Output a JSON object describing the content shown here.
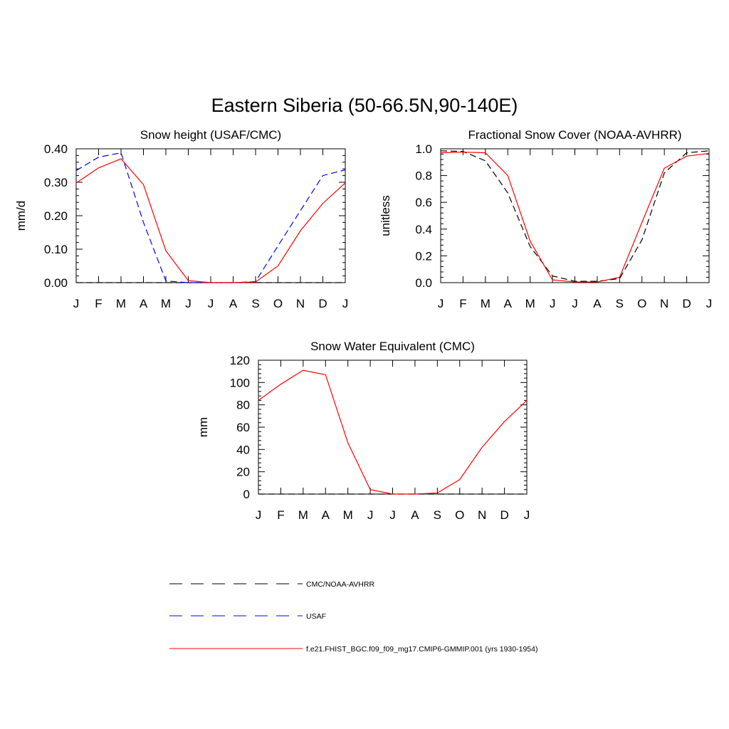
{
  "figure": {
    "title": "Eastern Siberia (50-66.5N,90-140E)"
  },
  "months": [
    "J",
    "F",
    "M",
    "A",
    "M",
    "J",
    "J",
    "A",
    "S",
    "O",
    "N",
    "D",
    "J"
  ],
  "colors": {
    "obs": "#000000",
    "usaf": "#0000ff",
    "model": "#ff0000"
  },
  "chart_data": [
    {
      "type": "line",
      "title": "Snow height (USAF/CMC)",
      "ylabel": "mm/d",
      "ylim": [
        0,
        0.4
      ],
      "yticks": [
        "0.00",
        "0.10",
        "0.20",
        "0.30",
        "0.40"
      ],
      "x": [
        "J",
        "F",
        "M",
        "A",
        "M",
        "J",
        "J",
        "A",
        "S",
        "O",
        "N",
        "D",
        "J"
      ],
      "series": [
        {
          "name": "CMC/NOAA-AVHRR",
          "values": [
            0,
            0,
            0,
            0,
            0,
            0,
            0,
            0,
            0,
            0,
            0,
            0,
            0
          ]
        },
        {
          "name": "USAF",
          "values": [
            0.335,
            0.375,
            0.388,
            0.18,
            0.005,
            0,
            0,
            0,
            0.003,
            0.11,
            0.215,
            0.32,
            0.337
          ]
        },
        {
          "name": "f.e21.FHIST_BGC.f09_f09_mg17.CMIP6-GMMIP.001 (yrs 1930-1954)",
          "values": [
            0.298,
            0.343,
            0.37,
            0.293,
            0.095,
            0.006,
            0,
            0,
            0.002,
            0.05,
            0.155,
            0.237,
            0.298
          ]
        }
      ]
    },
    {
      "type": "line",
      "title": "Fractional Snow Cover (NOAA-AVHRR)",
      "ylabel": "unitless",
      "ylim": [
        0,
        1
      ],
      "yticks": [
        "0.0",
        "0.2",
        "0.4",
        "0.6",
        "0.8",
        "1.0"
      ],
      "x": [
        "J",
        "F",
        "M",
        "A",
        "M",
        "J",
        "J",
        "A",
        "S",
        "O",
        "N",
        "D",
        "J"
      ],
      "series": [
        {
          "name": "CMC/NOAA-AVHRR",
          "values": [
            0.985,
            0.98,
            0.91,
            0.67,
            0.27,
            0.05,
            0.01,
            0.01,
            0.03,
            0.32,
            0.82,
            0.97,
            0.985
          ]
        },
        {
          "name": "f.e21.FHIST_BGC.f09_f09_mg17.CMIP6-GMMIP.001 (yrs 1930-1954)",
          "values": [
            0.97,
            0.975,
            0.97,
            0.8,
            0.31,
            0.02,
            0.005,
            0.005,
            0.04,
            0.45,
            0.855,
            0.945,
            0.965
          ]
        }
      ]
    },
    {
      "type": "line",
      "title": "Snow Water Equivalent (CMC)",
      "ylabel": "mm",
      "ylim": [
        0,
        120
      ],
      "yticks": [
        "0",
        "20",
        "40",
        "60",
        "80",
        "100",
        "120"
      ],
      "x": [
        "J",
        "F",
        "M",
        "A",
        "M",
        "J",
        "J",
        "A",
        "S",
        "O",
        "N",
        "D",
        "J"
      ],
      "series": [
        {
          "name": "CMC/NOAA-AVHRR",
          "values": [
            0,
            0,
            0,
            0,
            0,
            0,
            0,
            0,
            0,
            0,
            0,
            0,
            0
          ]
        },
        {
          "name": "f.e21.FHIST_BGC.f09_f09_mg17.CMIP6-GMMIP.001 (yrs 1930-1954)",
          "values": [
            84,
            98.5,
            111,
            107,
            46,
            4,
            0,
            0,
            1,
            13,
            42,
            65,
            84
          ]
        }
      ]
    }
  ],
  "legend": [
    {
      "label": "CMC/NOAA-AVHRR",
      "style": "dashed",
      "color": "#000000"
    },
    {
      "label": "USAF",
      "style": "dashed",
      "color": "#0000ff"
    },
    {
      "label": "f.e21.FHIST_BGC.f09_f09_mg17.CMIP6-GMMIP.001 (yrs 1930-1954)",
      "style": "solid",
      "color": "#ff0000"
    }
  ]
}
